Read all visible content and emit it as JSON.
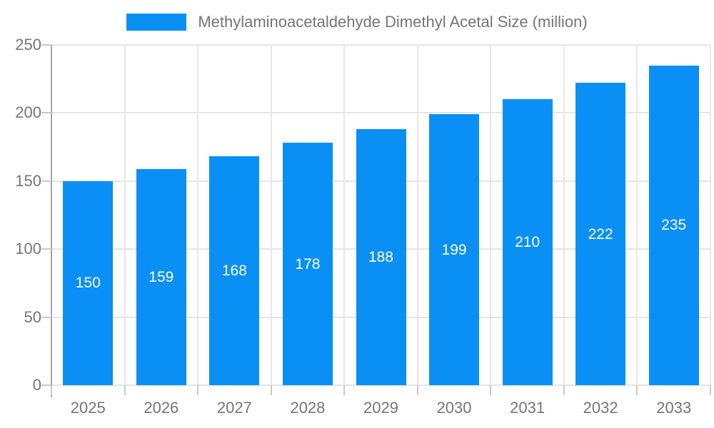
{
  "chart_data": {
    "type": "bar",
    "title": "Methylaminoacetaldehyde Dimethyl Acetal Size (million)",
    "categories": [
      "2025",
      "2026",
      "2027",
      "2028",
      "2029",
      "2030",
      "2031",
      "2032",
      "2033"
    ],
    "values": [
      150,
      159,
      168,
      178,
      188,
      199,
      210,
      222,
      235
    ],
    "series": [
      {
        "name": "Methylaminoacetaldehyde Dimethyl Acetal Size (million)",
        "values": [
          150,
          159,
          168,
          178,
          188,
          199,
          210,
          222,
          235
        ]
      }
    ],
    "xlabel": "",
    "ylabel": "",
    "ylim": [
      0,
      250
    ],
    "yticks": [
      0,
      50,
      100,
      150,
      200,
      250
    ],
    "grid": true,
    "legend_position": "top-center",
    "bar_value_labels_visible": true,
    "colors": {
      "bar": "#0a90f5",
      "bar_label": "#ffffff",
      "axis_text": "#757575",
      "legend_text": "#757575",
      "grid_line": "#e4e4e4",
      "axis_line": "#a6a6a6",
      "background": "#ffffff"
    }
  }
}
